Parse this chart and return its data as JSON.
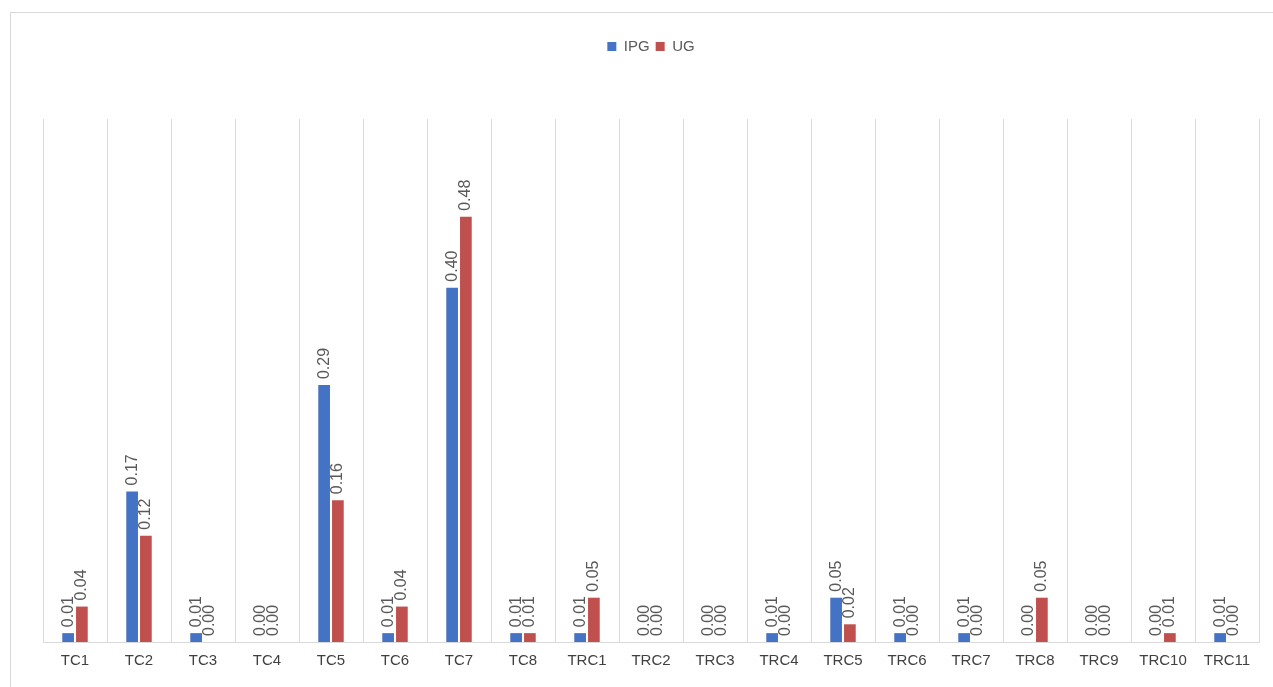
{
  "chart_data": {
    "type": "bar",
    "categories": [
      "TC1",
      "TC2",
      "TC3",
      "TC4",
      "TC5",
      "TC6",
      "TC7",
      "TC8",
      "TRC1",
      "TRC2",
      "TRC3",
      "TRC4",
      "TRC5",
      "TRC6",
      "TRC7",
      "TRC8",
      "TRC9",
      "TRC10",
      "TRC11"
    ],
    "series": [
      {
        "name": "IPG",
        "color": "#4472c4",
        "values": [
          0.01,
          0.17,
          0.01,
          0.0,
          0.29,
          0.01,
          0.4,
          0.01,
          0.01,
          0.0,
          0.0,
          0.01,
          0.05,
          0.01,
          0.01,
          0.0,
          0.0,
          0.0,
          0.01
        ],
        "value_labels": [
          "0.01",
          "0.17",
          "0.01",
          "0.00",
          "0.29",
          "0.01",
          "0.40",
          "0.01",
          "0.01",
          "0.00",
          "0.00",
          "0.01",
          "0.05",
          "0.01",
          "0.01",
          "0.00",
          "0.00",
          "0.00",
          "0.01"
        ]
      },
      {
        "name": "UG",
        "color": "#c0504d",
        "values": [
          0.04,
          0.12,
          0.0,
          0.0,
          0.16,
          0.04,
          0.48,
          0.01,
          0.05,
          0.0,
          0.0,
          0.0,
          0.02,
          0.0,
          0.0,
          0.05,
          0.0,
          0.01,
          0.0
        ],
        "value_labels": [
          "0.04",
          "0.12",
          "0.00",
          "0.00",
          "0.16",
          "0.04",
          "0.48",
          "0.01",
          "0.05",
          "0.00",
          "0.00",
          "0.00",
          "0.02",
          "0.00",
          "0.00",
          "0.05",
          "0.00",
          "0.01",
          "0.00"
        ]
      }
    ],
    "grid": "x",
    "legend": "top"
  }
}
